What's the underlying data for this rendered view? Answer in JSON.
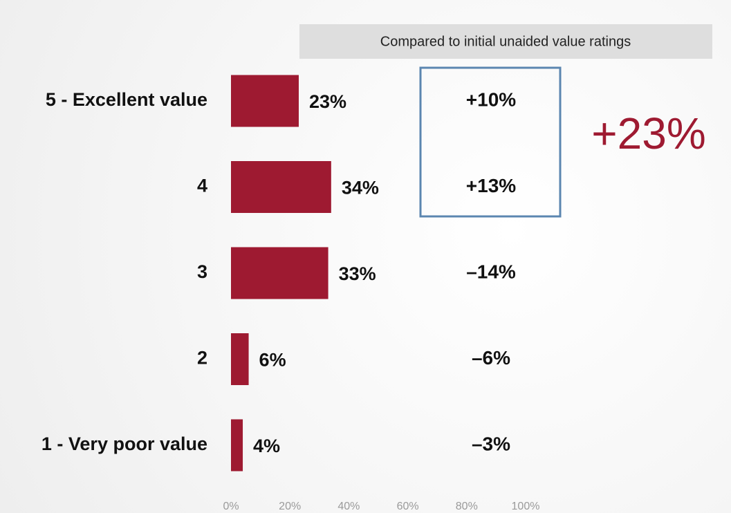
{
  "chart_data": {
    "type": "barh",
    "categories": [
      "5 - Excellent value",
      "4",
      "3",
      "2",
      "1 - Very poor value"
    ],
    "values": [
      23,
      34,
      33,
      6,
      4
    ],
    "value_labels": [
      "23%",
      "34%",
      "33%",
      "6%",
      "4%"
    ],
    "color": "#9e1a31",
    "xlim": [
      0,
      100
    ],
    "xticks": [
      {
        "value": 0,
        "label": "0%"
      },
      {
        "value": 20,
        "label": "20%"
      },
      {
        "value": 40,
        "label": "40%"
      },
      {
        "value": 60,
        "label": "60%"
      },
      {
        "value": 80,
        "label": "80%"
      },
      {
        "value": 100,
        "label": "100%"
      }
    ],
    "comparison": {
      "title": "Compared to initial unaided value ratings",
      "labels": [
        "+10%",
        "+13%",
        "–14%",
        "–6%",
        "–3%"
      ]
    },
    "annotation": "+23%"
  }
}
